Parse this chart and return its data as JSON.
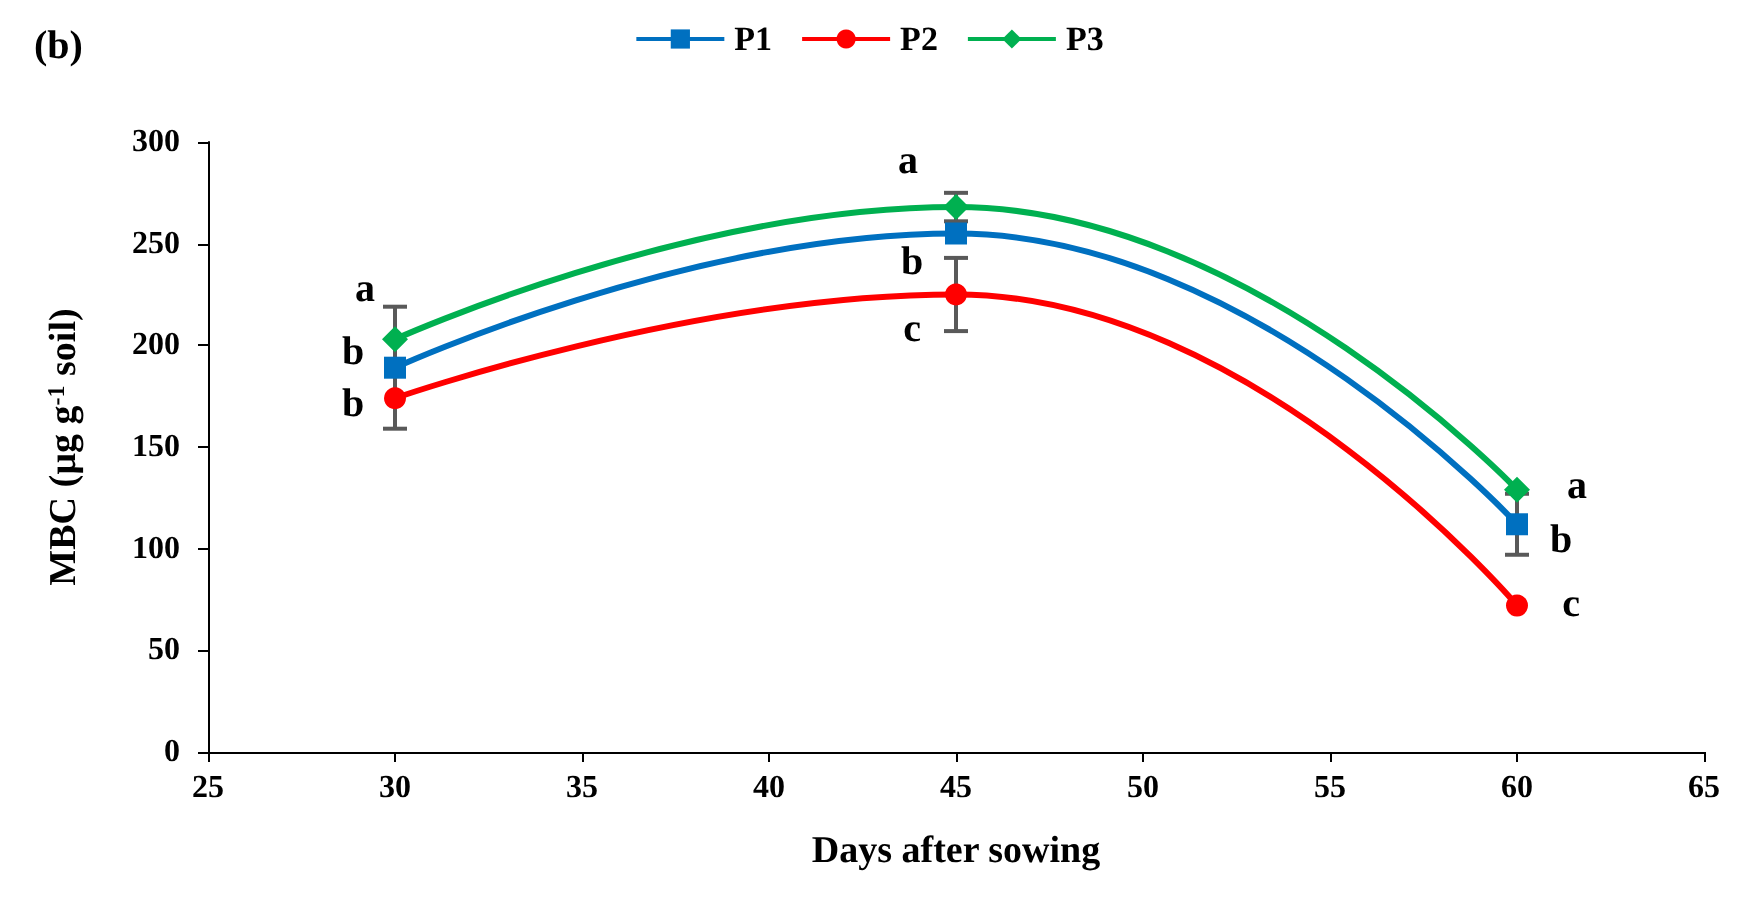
{
  "chart_data": {
    "type": "line",
    "title": "(b)",
    "xlabel": "Days after sowing",
    "ylabel": "MBC (µg g$^{-1}$ soil)",
    "x": [
      30,
      45,
      60
    ],
    "series": [
      {
        "name": "P1",
        "color": "#0070c0",
        "marker": "square",
        "values": [
          189,
          255,
          112
        ],
        "errors": [
          30,
          null,
          15
        ]
      },
      {
        "name": "P2",
        "color": "#ff0000",
        "marker": "circle",
        "values": [
          174,
          225,
          72
        ],
        "errors": [
          null,
          18,
          null
        ]
      },
      {
        "name": "P3",
        "color": "#00b050",
        "marker": "diamond",
        "values": [
          203,
          268,
          129
        ],
        "errors": [
          null,
          7,
          null
        ]
      }
    ],
    "xlim": [
      25,
      65
    ],
    "xticks": [
      25,
      30,
      35,
      40,
      45,
      50,
      55,
      60,
      65
    ],
    "ylim": [
      0,
      300
    ],
    "yticks": [
      0,
      50,
      100,
      150,
      200,
      250,
      300
    ],
    "grid": false,
    "legend": "top",
    "line_style": "solid",
    "annotations": [
      {
        "text": "a",
        "x": 30,
        "y": 203
      },
      {
        "text": "b",
        "x": 30,
        "y": 189
      },
      {
        "text": "b",
        "x": 30,
        "y": 174
      },
      {
        "text": "a",
        "x": 45,
        "y": 268
      },
      {
        "text": "b",
        "x": 45,
        "y": 255
      },
      {
        "text": "c",
        "x": 45,
        "y": 225
      },
      {
        "text": "a",
        "x": 60,
        "y": 129
      },
      {
        "text": "b",
        "x": 60,
        "y": 112
      },
      {
        "text": "c",
        "x": 60,
        "y": 72
      }
    ]
  }
}
